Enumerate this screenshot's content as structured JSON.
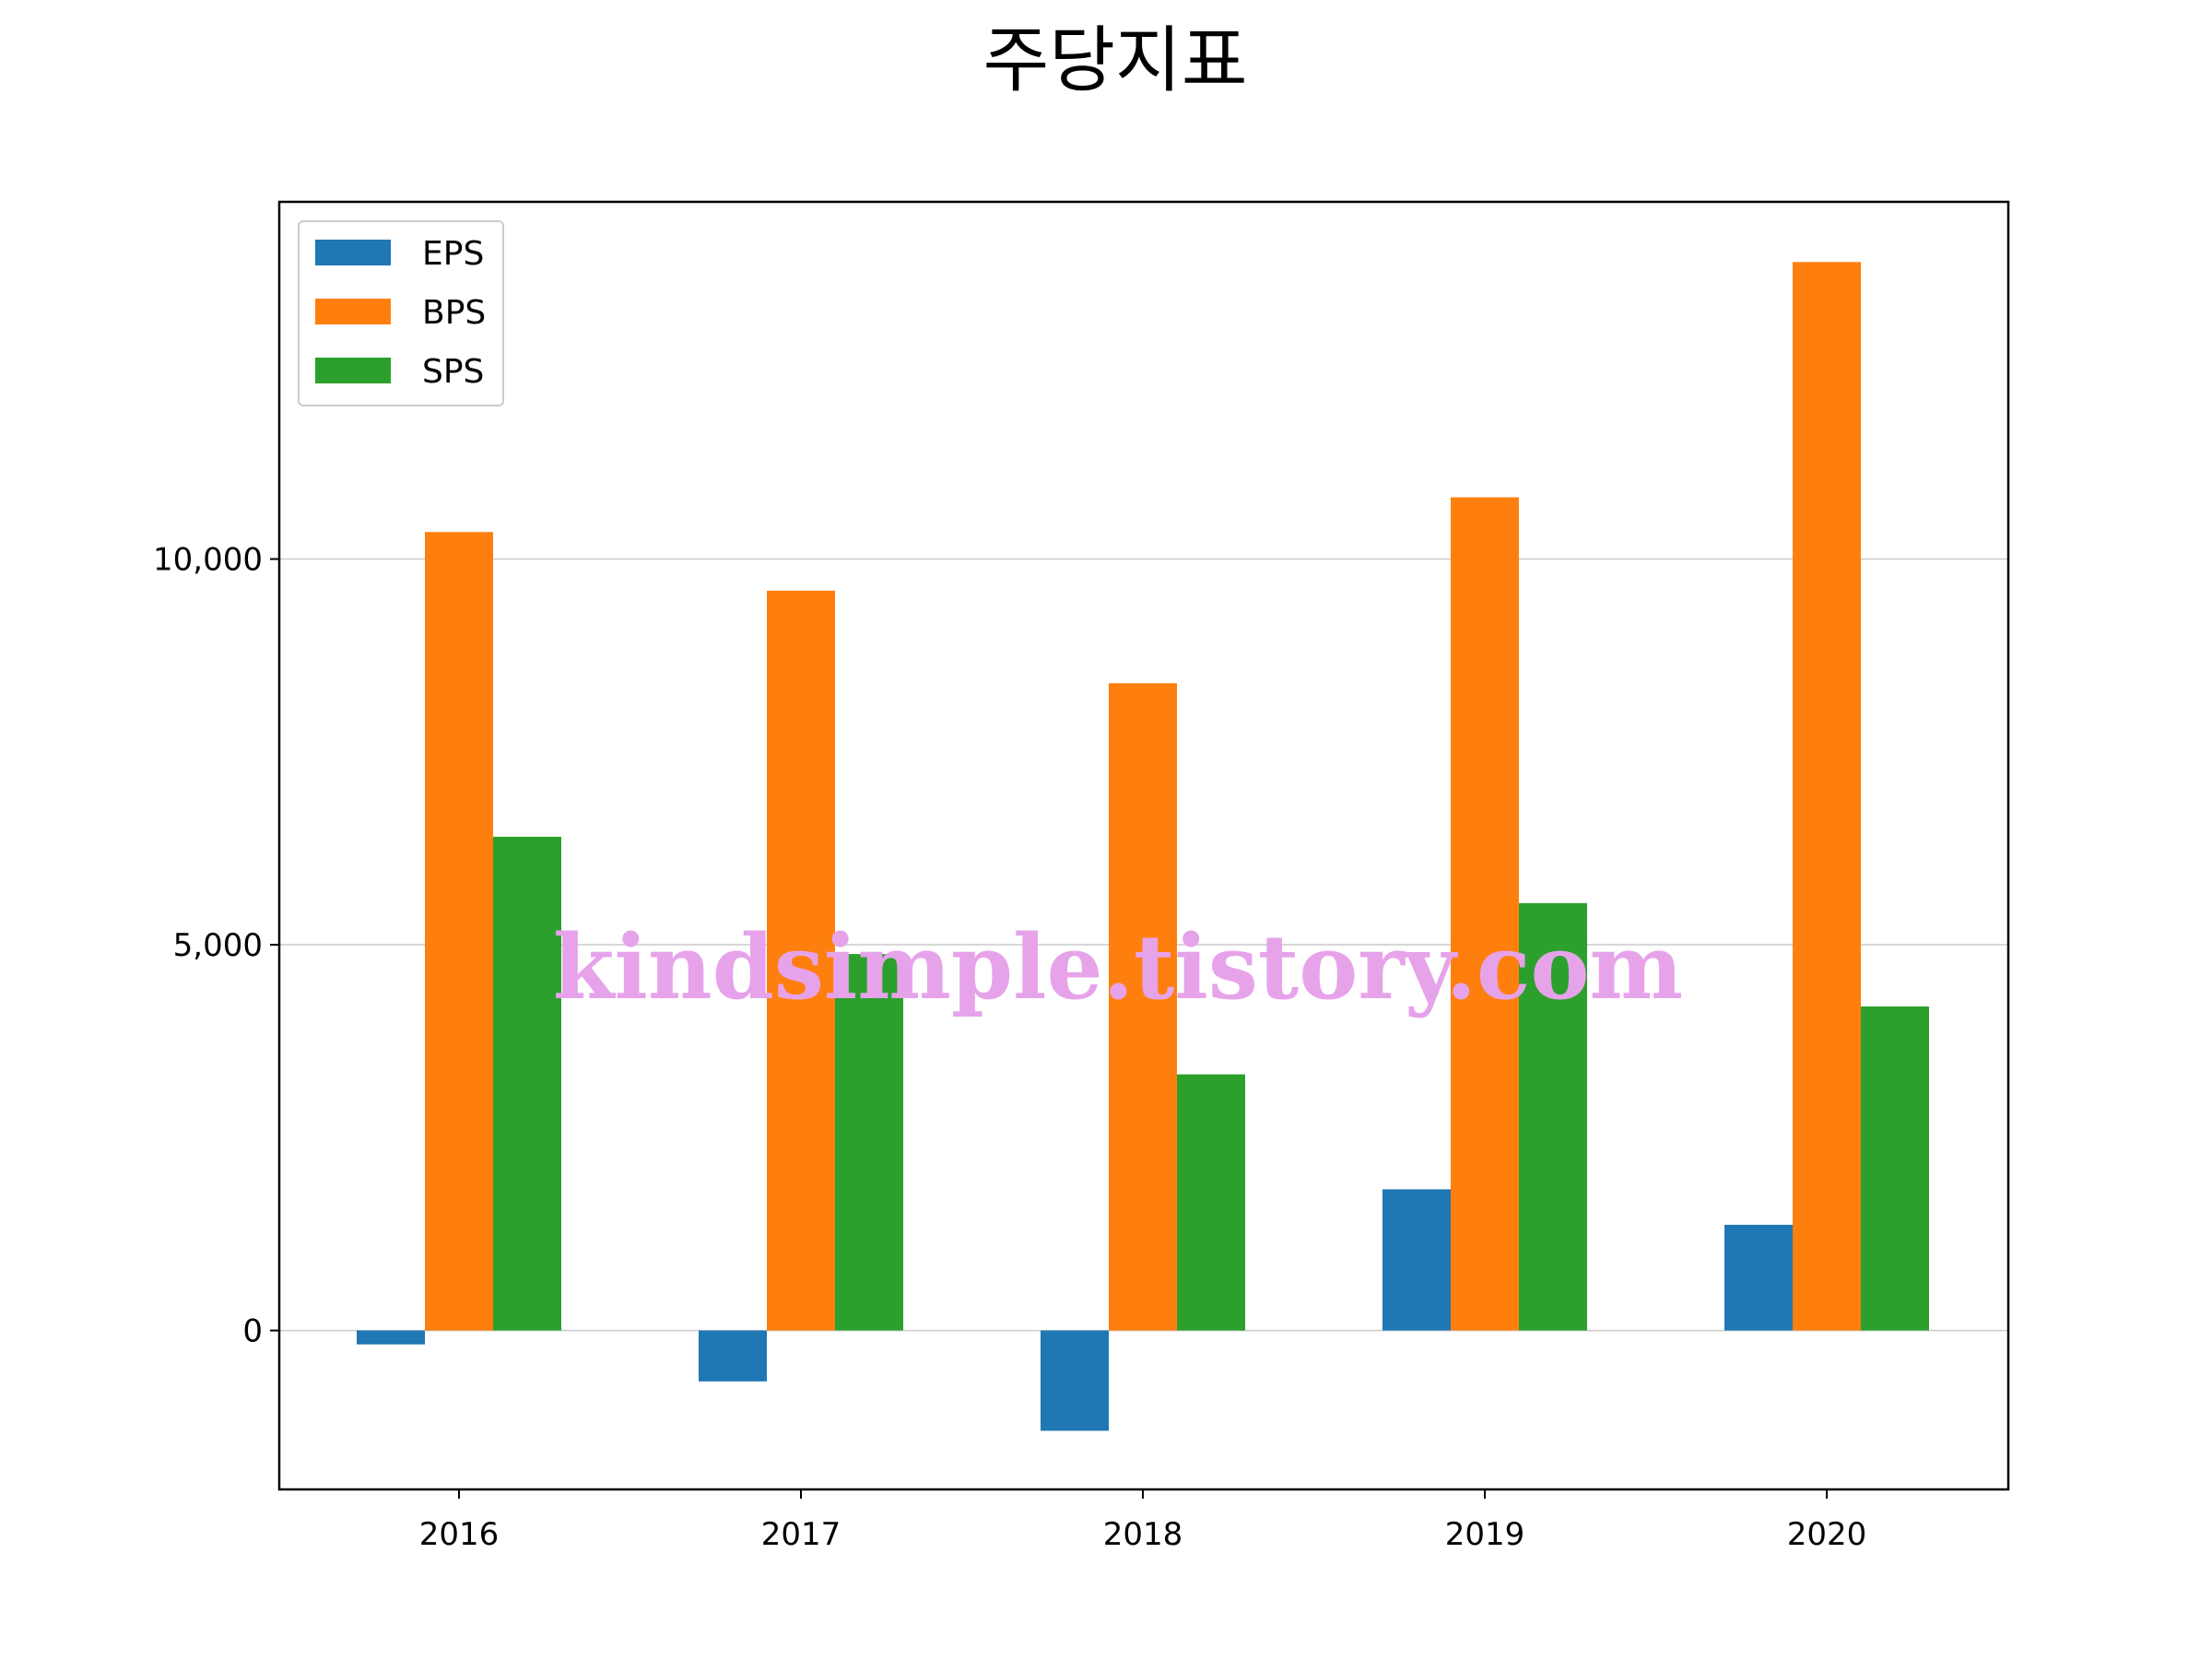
{
  "chart_data": {
    "type": "bar",
    "title": "주당지표",
    "xlabel": "",
    "ylabel": "",
    "categories": [
      "2016",
      "2017",
      "2018",
      "2019",
      "2020"
    ],
    "series": [
      {
        "name": "EPS",
        "color": "#1f77b4",
        "values": [
          -180,
          -660,
          -1300,
          1830,
          1370
        ]
      },
      {
        "name": "BPS",
        "color": "#ff7f0e",
        "values": [
          10350,
          9590,
          8390,
          10800,
          13850
        ]
      },
      {
        "name": "SPS",
        "color": "#2ca02c",
        "values": [
          6400,
          4880,
          3320,
          5540,
          4200
        ]
      }
    ],
    "ylim": [
      -2060,
      14630
    ],
    "yticks": [
      0,
      5000,
      10000
    ],
    "ytick_labels": [
      "0",
      "5,000",
      "10,000"
    ],
    "grid": "horizontal",
    "legend_position": "top-left"
  },
  "watermark": "kindsimple.tistory.com"
}
